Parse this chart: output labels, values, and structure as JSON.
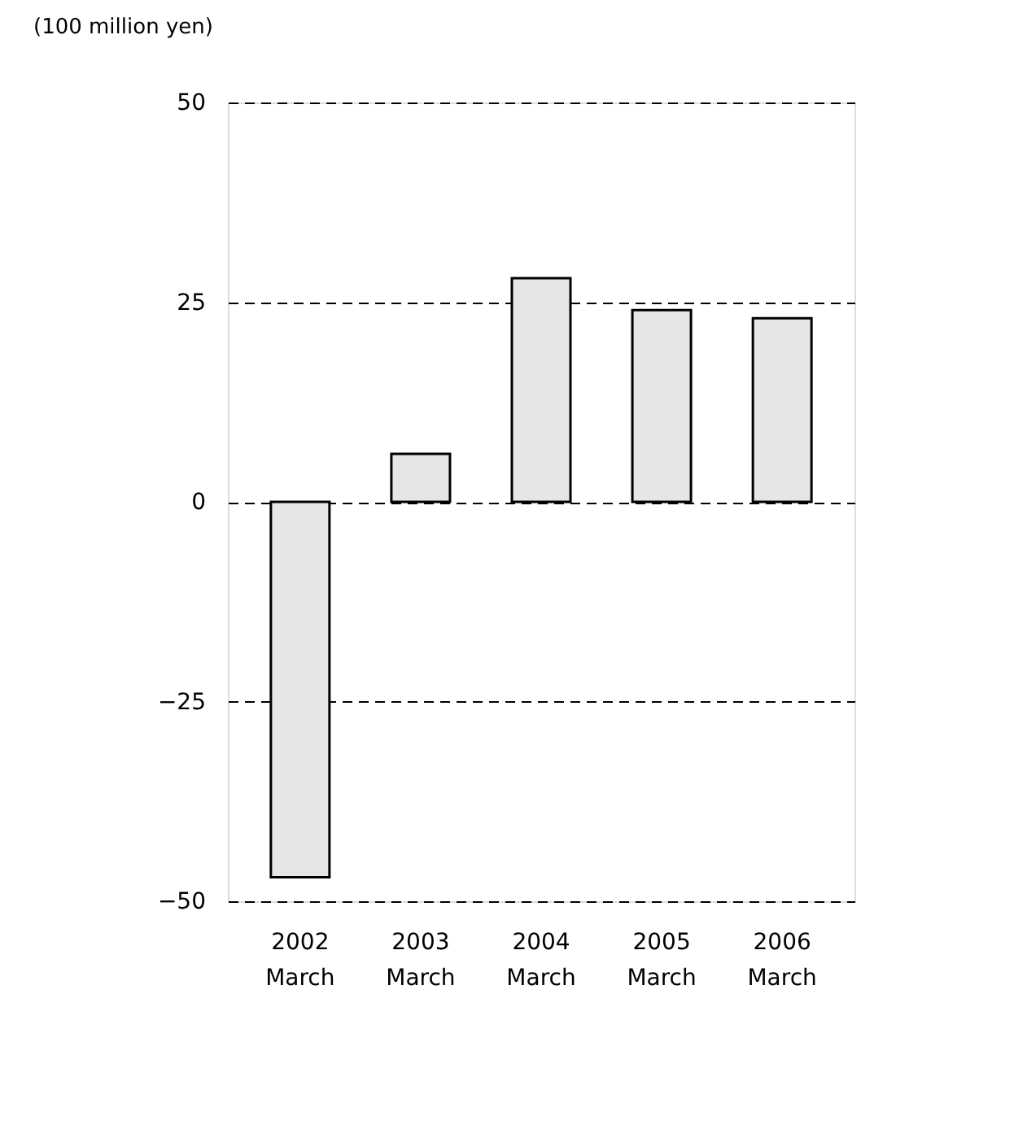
{
  "chart_data": {
    "type": "bar",
    "ylabel": "(100 million yen)",
    "categories": [
      "2002 March",
      "2003 March",
      "2004 March",
      "2005 March",
      "2006 March"
    ],
    "values": [
      -47,
      6,
      28,
      24,
      23
    ],
    "color": "#e6e6e6",
    "ylim": [
      -50,
      50
    ],
    "yticks": [
      -50,
      -25,
      0,
      25,
      50
    ],
    "grid": "y"
  }
}
